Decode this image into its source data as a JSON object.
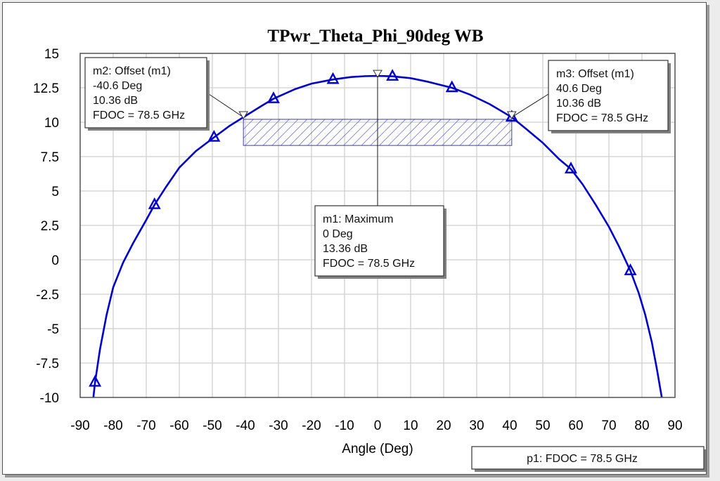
{
  "chart_data": {
    "type": "line",
    "title": "TPwr_Theta_Phi_90deg WB",
    "xlabel": "Angle (Deg)",
    "ylabel": "",
    "xlim": [
      -90,
      90
    ],
    "ylim": [
      -10,
      15
    ],
    "grid": true,
    "x_ticks": [
      "-90",
      "-80",
      "-70",
      "-60",
      "-50",
      "-40",
      "-30",
      "-20",
      "-10",
      "0",
      "10",
      "20",
      "30",
      "40",
      "50",
      "60",
      "70",
      "80",
      "90"
    ],
    "y_ticks": [
      "15",
      "12.5",
      "10",
      "7.5",
      "5",
      "2.5",
      "0",
      "-2.5",
      "-5",
      "-7.5",
      "-10"
    ],
    "series": [
      {
        "name": "p1: FDOC = 78.5 GHz",
        "color": "#0000c8",
        "marker": "triangle",
        "x": [
          -86,
          -85.5,
          -84,
          -82,
          -80,
          -77,
          -74,
          -70,
          -67.5,
          -64,
          -60,
          -55,
          -49.5,
          -45,
          -40.6,
          -35,
          -31.5,
          -25,
          -20,
          -13.5,
          -8,
          -4,
          0,
          4.5,
          10,
          15,
          22.5,
          28,
          34,
          40.6,
          45,
          50,
          55,
          58.5,
          62,
          66,
          70,
          73,
          76.5,
          79,
          81,
          83,
          84.5,
          86
        ],
        "y": [
          -10,
          -8.9,
          -6.5,
          -4.0,
          -2.0,
          -0.2,
          1.2,
          2.9,
          4.0,
          5.3,
          6.7,
          7.9,
          8.9,
          9.7,
          10.36,
          11.2,
          11.7,
          12.4,
          12.8,
          13.1,
          13.28,
          13.34,
          13.36,
          13.33,
          13.2,
          12.95,
          12.5,
          12.0,
          11.3,
          10.36,
          9.5,
          8.5,
          7.3,
          6.6,
          5.5,
          4.0,
          2.4,
          1.0,
          -0.8,
          -2.4,
          -4.0,
          -6.0,
          -7.9,
          -10
        ],
        "marker_points": [
          {
            "x": -85.5,
            "y": -8.9
          },
          {
            "x": -67.5,
            "y": 4.0
          },
          {
            "x": -49.5,
            "y": 8.9
          },
          {
            "x": -31.5,
            "y": 11.7
          },
          {
            "x": -13.5,
            "y": 13.1
          },
          {
            "x": 4.5,
            "y": 13.33
          },
          {
            "x": 22.5,
            "y": 12.5
          },
          {
            "x": 40.6,
            "y": 10.36
          },
          {
            "x": 58.5,
            "y": 6.6
          },
          {
            "x": 76.5,
            "y": -0.8
          }
        ]
      }
    ],
    "markers": [
      {
        "id": "m1",
        "lines": [
          "m1: Maximum",
          "0 Deg",
          "13.36 dB",
          "FDOC = 78.5 GHz"
        ],
        "x": 0,
        "y": 13.36
      },
      {
        "id": "m2",
        "lines": [
          "m2: Offset (m1)",
          "-40.6 Deg",
          "10.36 dB",
          "FDOC = 78.5 GHz"
        ],
        "x": -40.6,
        "y": 10.36
      },
      {
        "id": "m3",
        "lines": [
          "m3: Offset (m1)",
          "40.6 Deg",
          "10.36 dB",
          "FDOC = 78.5 GHz"
        ],
        "x": 40.6,
        "y": 10.36
      }
    ],
    "beamwidth_band": {
      "x_start": -40.6,
      "x_end": 40.6,
      "y": 10.36,
      "depth_db": 1
    },
    "legend": {
      "text": "p1: FDOC = 78.5 GHz",
      "placement": "bottom-right"
    }
  }
}
